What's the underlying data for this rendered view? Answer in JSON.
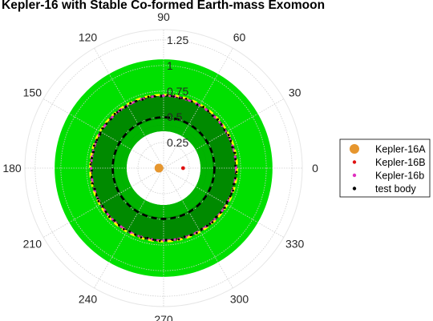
{
  "chart_data": {
    "type": "polar-scatter",
    "title": "Kepler-16 with Stable Co-formed Earth-mass Exomoon",
    "theta_ticks": [
      "0",
      "30",
      "60",
      "90",
      "120",
      "150",
      "180",
      "210",
      "240",
      "270",
      "300",
      "330"
    ],
    "r_ticks": [
      "0.25",
      "0.5",
      "0.75",
      "1",
      "1.25"
    ],
    "r_tick_values": [
      0.25,
      0.5,
      0.75,
      1.0,
      1.25
    ],
    "r_max": 1.35,
    "grid": true,
    "legend_position": "right",
    "legend": [
      {
        "label": "Kepler-16A",
        "color": "#e6962e",
        "marker": "large-dot"
      },
      {
        "label": "Kepler-16B",
        "color": "#e01010",
        "marker": "dot"
      },
      {
        "label": "Kepler-16b",
        "color": "#e030c0",
        "marker": "dot"
      },
      {
        "label": "test body",
        "color": "#000000",
        "marker": "dot"
      }
    ],
    "regions": [
      {
        "name": "outer-band",
        "r_inner": 0.36,
        "r_outer": 1.06,
        "color": "#00e000"
      },
      {
        "name": "mid-band",
        "r_inner": 0.36,
        "r_outer": 0.61,
        "color": "#00b400"
      },
      {
        "name": "inner-band",
        "r_inner": 0.42,
        "r_outer": 0.72,
        "color": "#008a00"
      },
      {
        "name": "inner-ring",
        "r_inner": 0.42,
        "r_outer": 0.48,
        "color": "#00b400"
      }
    ],
    "points": {
      "Kepler-16A": {
        "r": 0.045,
        "theta": 180
      },
      "Kepler-16B": {
        "r": 0.19,
        "theta": 0
      }
    },
    "rings": [
      {
        "name": "Kepler-16b orbit",
        "r": 0.705,
        "color": "#e030c0",
        "dash": "dashed"
      },
      {
        "name": "test body orbit",
        "r": 0.705,
        "color": "#000000",
        "dash": "dotted"
      },
      {
        "name": "yellow-dashed",
        "r": 0.715,
        "color": "#ffff00",
        "dash": "dashed"
      },
      {
        "name": "black-dashed",
        "r": 0.495,
        "color": "#000000",
        "dash": "dashed"
      }
    ]
  }
}
